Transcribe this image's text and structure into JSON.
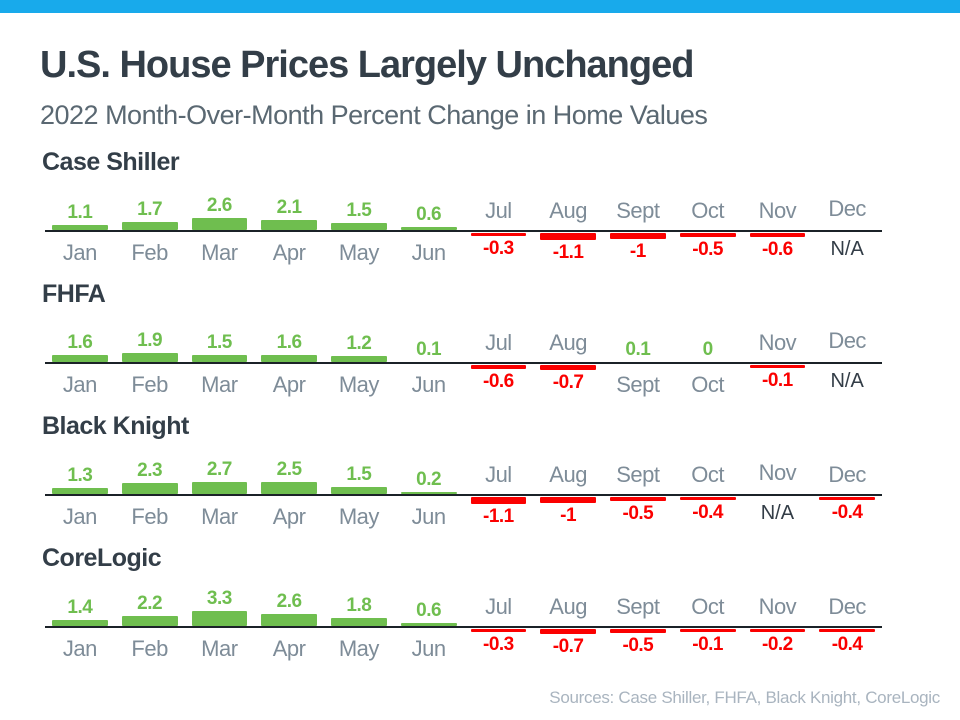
{
  "page": {
    "title": "U.S. House Prices Largely Unchanged",
    "subtitle": "2022 Month-Over-Month Percent Change in Home Values",
    "source_note": "Sources: Case Shiller, FHFA, Black Knight, CoreLogic"
  },
  "colors": {
    "accent_bar": "#18AAEB",
    "positive": "#6FBE4F",
    "negative": "#FB0000",
    "month_label": "#7E8C98",
    "heading_text": "#333E48",
    "na_text": "#333D47",
    "baseline": "#1B2228"
  },
  "chart_data": [
    {
      "type": "bar",
      "title": "Case Shiller",
      "categories": [
        "Jan",
        "Feb",
        "Mar",
        "Apr",
        "May",
        "Jun",
        "Jul",
        "Aug",
        "Sept",
        "Oct",
        "Nov",
        "Dec"
      ],
      "values": [
        1.1,
        1.7,
        2.6,
        2.1,
        1.5,
        0.6,
        -0.3,
        -1.1,
        -1,
        -0.5,
        -0.6,
        null
      ],
      "labels": [
        "1.1",
        "1.7",
        "2.6",
        "2.1",
        "1.5",
        "0.6",
        "-0.3",
        "-1.1",
        "-1",
        "-0.5",
        "-0.6",
        "N/A"
      ],
      "baseline": 0,
      "value_labels": "on",
      "grid": "off"
    },
    {
      "type": "bar",
      "title": "FHFA",
      "categories": [
        "Jan",
        "Feb",
        "Mar",
        "Apr",
        "May",
        "Jun",
        "Jul",
        "Aug",
        "Sept",
        "Oct",
        "Nov",
        "Dec"
      ],
      "values": [
        1.6,
        1.9,
        1.5,
        1.6,
        1.2,
        0.1,
        -0.6,
        -0.7,
        0.1,
        0,
        -0.1,
        null
      ],
      "labels": [
        "1.6",
        "1.9",
        "1.5",
        "1.6",
        "1.2",
        "0.1",
        "-0.6",
        "-0.7",
        "0.1",
        "0",
        "-0.1",
        "N/A"
      ],
      "baseline": 0,
      "value_labels": "on",
      "grid": "off"
    },
    {
      "type": "bar",
      "title": "Black Knight",
      "categories": [
        "Jan",
        "Feb",
        "Mar",
        "Apr",
        "May",
        "Jun",
        "Jul",
        "Aug",
        "Sept",
        "Oct",
        "Nov",
        "Dec"
      ],
      "values": [
        1.3,
        2.3,
        2.7,
        2.5,
        1.5,
        0.2,
        -1.1,
        -1,
        -0.5,
        -0.4,
        null,
        -0.4
      ],
      "labels": [
        "1.3",
        "2.3",
        "2.7",
        "2.5",
        "1.5",
        "0.2",
        "-1.1",
        "-1",
        "-0.5",
        "-0.4",
        "N/A",
        "-0.4"
      ],
      "baseline": 0,
      "value_labels": "on",
      "grid": "off"
    },
    {
      "type": "bar",
      "title": "CoreLogic",
      "categories": [
        "Jan",
        "Feb",
        "Mar",
        "Apr",
        "May",
        "Jun",
        "Jul",
        "Aug",
        "Sept",
        "Oct",
        "Nov",
        "Dec"
      ],
      "values": [
        1.4,
        2.2,
        3.3,
        2.6,
        1.8,
        0.6,
        -0.3,
        -0.7,
        -0.5,
        -0.1,
        -0.2,
        -0.4
      ],
      "labels": [
        "1.4",
        "2.2",
        "3.3",
        "2.6",
        "1.8",
        "0.6",
        "-0.3",
        "-0.7",
        "-0.5",
        "-0.1",
        "-0.2",
        "-0.4"
      ],
      "baseline": 0,
      "value_labels": "on",
      "grid": "off"
    }
  ]
}
